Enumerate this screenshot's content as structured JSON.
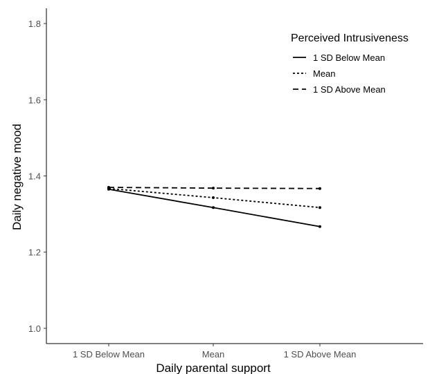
{
  "chart_data": {
    "type": "line",
    "xlabel": "Daily parental support",
    "ylabel": "Daily negative mood",
    "categories": [
      "1 SD Below Mean",
      "Mean",
      "1 SD Above Mean"
    ],
    "ylim": [
      0.96,
      1.84
    ],
    "yticks": [
      1.0,
      1.2,
      1.4,
      1.6,
      1.8
    ],
    "ytick_labels": [
      "1.0",
      "1.2",
      "1.4",
      "1.6",
      "1.8"
    ],
    "legend": {
      "title": "Perceived Intrusiveness",
      "position": "top-right"
    },
    "grid": false,
    "series": [
      {
        "name": "1 SD Below Mean",
        "values": [
          1.365,
          1.317,
          1.267
        ],
        "line_style": "solid"
      },
      {
        "name": "Mean",
        "values": [
          1.367,
          1.343,
          1.317
        ],
        "line_style": "dotted"
      },
      {
        "name": "1 SD Above Mean",
        "values": [
          1.37,
          1.368,
          1.367
        ],
        "line_style": "dashed"
      }
    ],
    "colors": {
      "line": "#000000",
      "axis": "#000000",
      "tick_text": "#4d4d4d"
    }
  }
}
